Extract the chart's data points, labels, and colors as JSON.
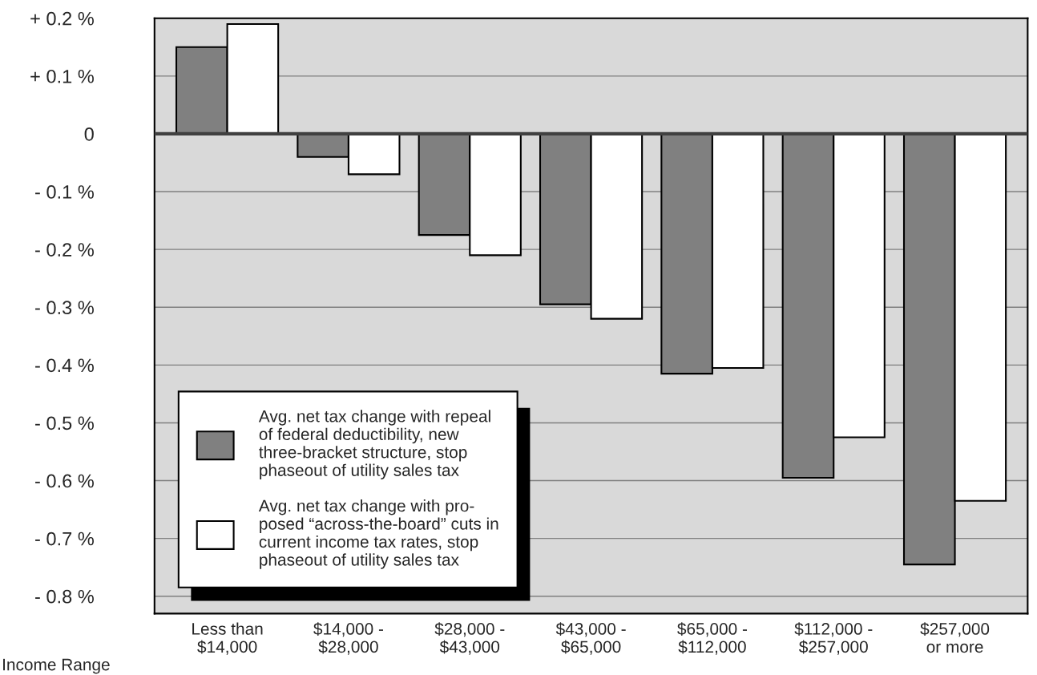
{
  "chart_data": {
    "type": "bar",
    "xlabel": "Income Range",
    "categories": [
      "Less than\n$14,000",
      "$14,000 -\n$28,000",
      "$28,000 -\n$43,000",
      "$43,000 -\n$65,000",
      "$65,000 -\n$112,000",
      "$112,000 -\n$257,000",
      "$257,000\nor more"
    ],
    "series": [
      {
        "name": "Avg. net tax change with repeal\nof federal deductibility, new\nthree-bracket structure, stop\nphaseout of utility sales tax",
        "color": "#808080",
        "values": [
          0.15,
          -0.04,
          -0.175,
          -0.295,
          -0.415,
          -0.595,
          -0.745
        ]
      },
      {
        "name": "Avg. net tax change with pro-\nposed “across-the-board” cuts in\ncurrent income tax rates, stop\nphaseout of utility sales tax",
        "color": "#ffffff",
        "values": [
          0.19,
          -0.07,
          -0.21,
          -0.32,
          -0.405,
          -0.525,
          -0.635
        ]
      }
    ],
    "ylim": [
      -0.83,
      0.2
    ],
    "yticks": [
      {
        "value": 0.2,
        "label": "+ 0.2 %"
      },
      {
        "value": 0.1,
        "label": "+ 0.1 %"
      },
      0,
      {
        "value": -0.1,
        "label": "- 0.1 %"
      },
      {
        "value": -0.2,
        "label": "- 0.2 %"
      },
      {
        "value": -0.3,
        "label": "- 0.3 %"
      },
      {
        "value": -0.4,
        "label": "- 0.4 %"
      },
      {
        "value": -0.5,
        "label": "- 0.5 %"
      },
      {
        "value": -0.6,
        "label": "- 0.6 %"
      },
      {
        "value": -0.7,
        "label": "- 0.7 %"
      },
      {
        "value": -0.8,
        "label": "- 0.8 %"
      }
    ],
    "ref_lines": [
      {
        "axis": "y",
        "value": 0,
        "color": "#404040"
      }
    ],
    "grid": "y",
    "legend": "bottom left"
  }
}
